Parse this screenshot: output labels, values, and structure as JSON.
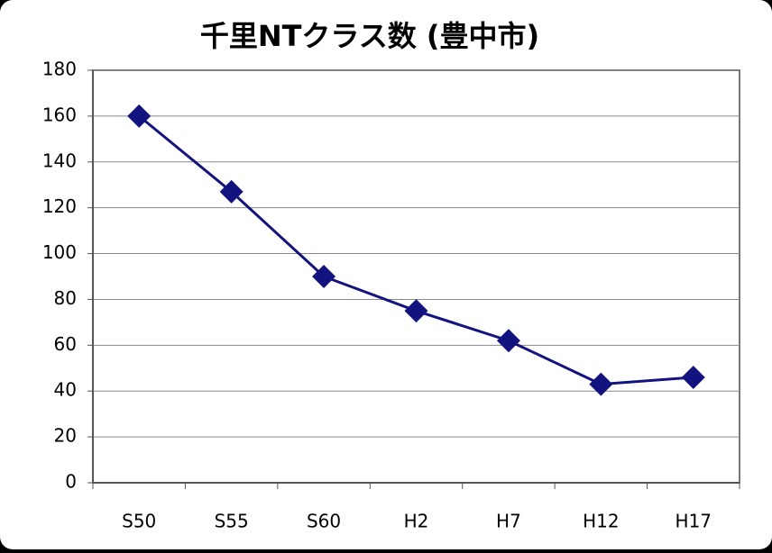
{
  "chart_data": {
    "type": "line",
    "title": "千里NTクラス数 (豊中市)",
    "categories": [
      "S50",
      "S55",
      "S60",
      "H2",
      "H7",
      "H12",
      "H17"
    ],
    "series": [
      {
        "name": "クラス数",
        "color": "#13137f",
        "values": [
          160,
          127,
          90,
          75,
          62,
          43,
          46
        ]
      }
    ],
    "ylim": [
      0,
      180
    ],
    "yticks": [
      0,
      20,
      40,
      60,
      80,
      100,
      120,
      140,
      160,
      180
    ],
    "grid": true
  }
}
